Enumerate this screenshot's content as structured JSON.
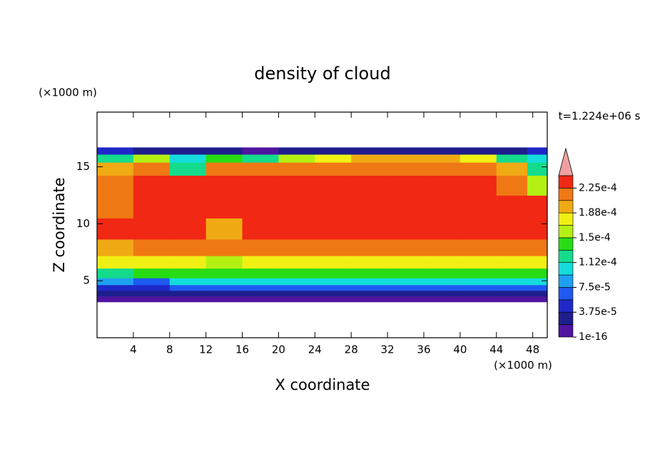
{
  "chart_data": {
    "type": "contour",
    "title": "density of cloud",
    "time_label": "t=1.224e+06 s",
    "x_label": "X coordinate",
    "y_label": "Z coordinate",
    "x_unit": "(×1000 m)",
    "y_unit": "(×1000 m)",
    "xlim": [
      0,
      49.6
    ],
    "ylim": [
      0,
      19.8
    ],
    "xticks": [
      4,
      8,
      12,
      16,
      20,
      24,
      28,
      32,
      36,
      40,
      44,
      48
    ],
    "yticks": [
      5,
      10,
      15
    ],
    "x": [
      2,
      6,
      10,
      14,
      18,
      22,
      26,
      30,
      34,
      38,
      42,
      46,
      48.8
    ],
    "z": [
      3.4,
      3.9,
      4.4,
      4.9,
      5.6,
      6.6,
      7.8,
      9.5,
      11.5,
      13.5,
      15.0,
      15.8,
      16.4
    ],
    "values": [
      [
        1e-05,
        5e-06,
        1e-05,
        1e-05,
        1e-05,
        1e-05,
        1e-05,
        1e-05,
        1e-05,
        1e-05,
        1e-05,
        1e-05,
        1e-05
      ],
      [
        3e-05,
        2e-05,
        3e-05,
        3e-05,
        3e-05,
        3e-05,
        3e-05,
        3e-05,
        3e-05,
        3e-05,
        3e-05,
        3e-05,
        3e-05
      ],
      [
        4e-05,
        4e-05,
        6e-05,
        6e-05,
        6e-05,
        6e-05,
        6e-05,
        6e-05,
        6e-05,
        6e-05,
        6e-05,
        6e-05,
        6e-05
      ],
      [
        8e-05,
        6e-05,
        0.0001,
        0.0001,
        0.0001,
        0.0001,
        0.0001,
        0.0001,
        0.0001,
        0.0001,
        0.0001,
        0.0001,
        0.0001
      ],
      [
        0.00012,
        0.00014,
        0.00014,
        0.00014,
        0.00014,
        0.00014,
        0.00014,
        0.00014,
        0.00014,
        0.00014,
        0.00014,
        0.00014,
        0.00014
      ],
      [
        0.00018,
        0.00018,
        0.00018,
        0.00015,
        0.00018,
        0.00018,
        0.00018,
        0.00018,
        0.00018,
        0.00018,
        0.00018,
        0.00018,
        0.00018
      ],
      [
        0.0002,
        0.00021,
        0.00021,
        0.00021,
        0.00021,
        0.00021,
        0.00021,
        0.00021,
        0.00021,
        0.00021,
        0.00021,
        0.00021,
        0.00021
      ],
      [
        0.00023,
        0.00023,
        0.00023,
        0.0002,
        0.00023,
        0.00023,
        0.00023,
        0.00023,
        0.00023,
        0.00023,
        0.00023,
        0.00023,
        0.00023
      ],
      [
        0.00022,
        0.00023,
        0.00023,
        0.00023,
        0.00023,
        0.00023,
        0.00023,
        0.00023,
        0.00023,
        0.00023,
        0.00023,
        0.00023,
        0.00023
      ],
      [
        0.00021,
        0.00023,
        0.00023,
        0.00023,
        0.00023,
        0.00023,
        0.00023,
        0.00023,
        0.00023,
        0.00023,
        0.00023,
        0.00022,
        0.00016
      ],
      [
        0.0002,
        0.00021,
        0.00012,
        0.00021,
        0.00021,
        0.00021,
        0.00021,
        0.00022,
        0.00022,
        0.00022,
        0.00022,
        0.0002,
        0.00013
      ],
      [
        0.00012,
        0.00015,
        0.0001,
        0.00014,
        0.00013,
        0.00015,
        0.00018,
        0.00019,
        0.00019,
        0.00019,
        0.00017,
        0.00012,
        0.0001
      ],
      [
        4e-05,
        3e-05,
        2e-05,
        2e-05,
        1.5e-05,
        2e-05,
        3e-05,
        3e-05,
        3e-05,
        3e-05,
        2e-05,
        3e-05,
        4e-05
      ]
    ],
    "levels": [
      1e-16,
      1.875e-05,
      3.75e-05,
      5.625e-05,
      7.5e-05,
      9.375e-05,
      0.0001125,
      0.00013125,
      0.00015,
      0.00016875,
      0.0001875,
      0.00020625,
      0.000225,
      0.00024375
    ],
    "colors": [
      "#5014a0",
      "#1e1e8c",
      "#1e28c8",
      "#1e5af0",
      "#1ea0f0",
      "#14dcdc",
      "#14dc8c",
      "#28dc14",
      "#b4f014",
      "#f0f014",
      "#f0aa14",
      "#f07814",
      "#f02814"
    ],
    "extend_color": "#f0a0a0",
    "colorbar_ticks": [
      {
        "value": 1e-16,
        "label": "1e-16"
      },
      {
        "value": 3.75e-05,
        "label": "3.75e-5"
      },
      {
        "value": 7.5e-05,
        "label": "7.5e-5"
      },
      {
        "value": 0.0001125,
        "label": "1.12e-4"
      },
      {
        "value": 0.00015,
        "label": "1.5e-4"
      },
      {
        "value": 0.0001875,
        "label": "1.88e-4"
      },
      {
        "value": 0.000225,
        "label": "2.25e-4"
      }
    ]
  }
}
